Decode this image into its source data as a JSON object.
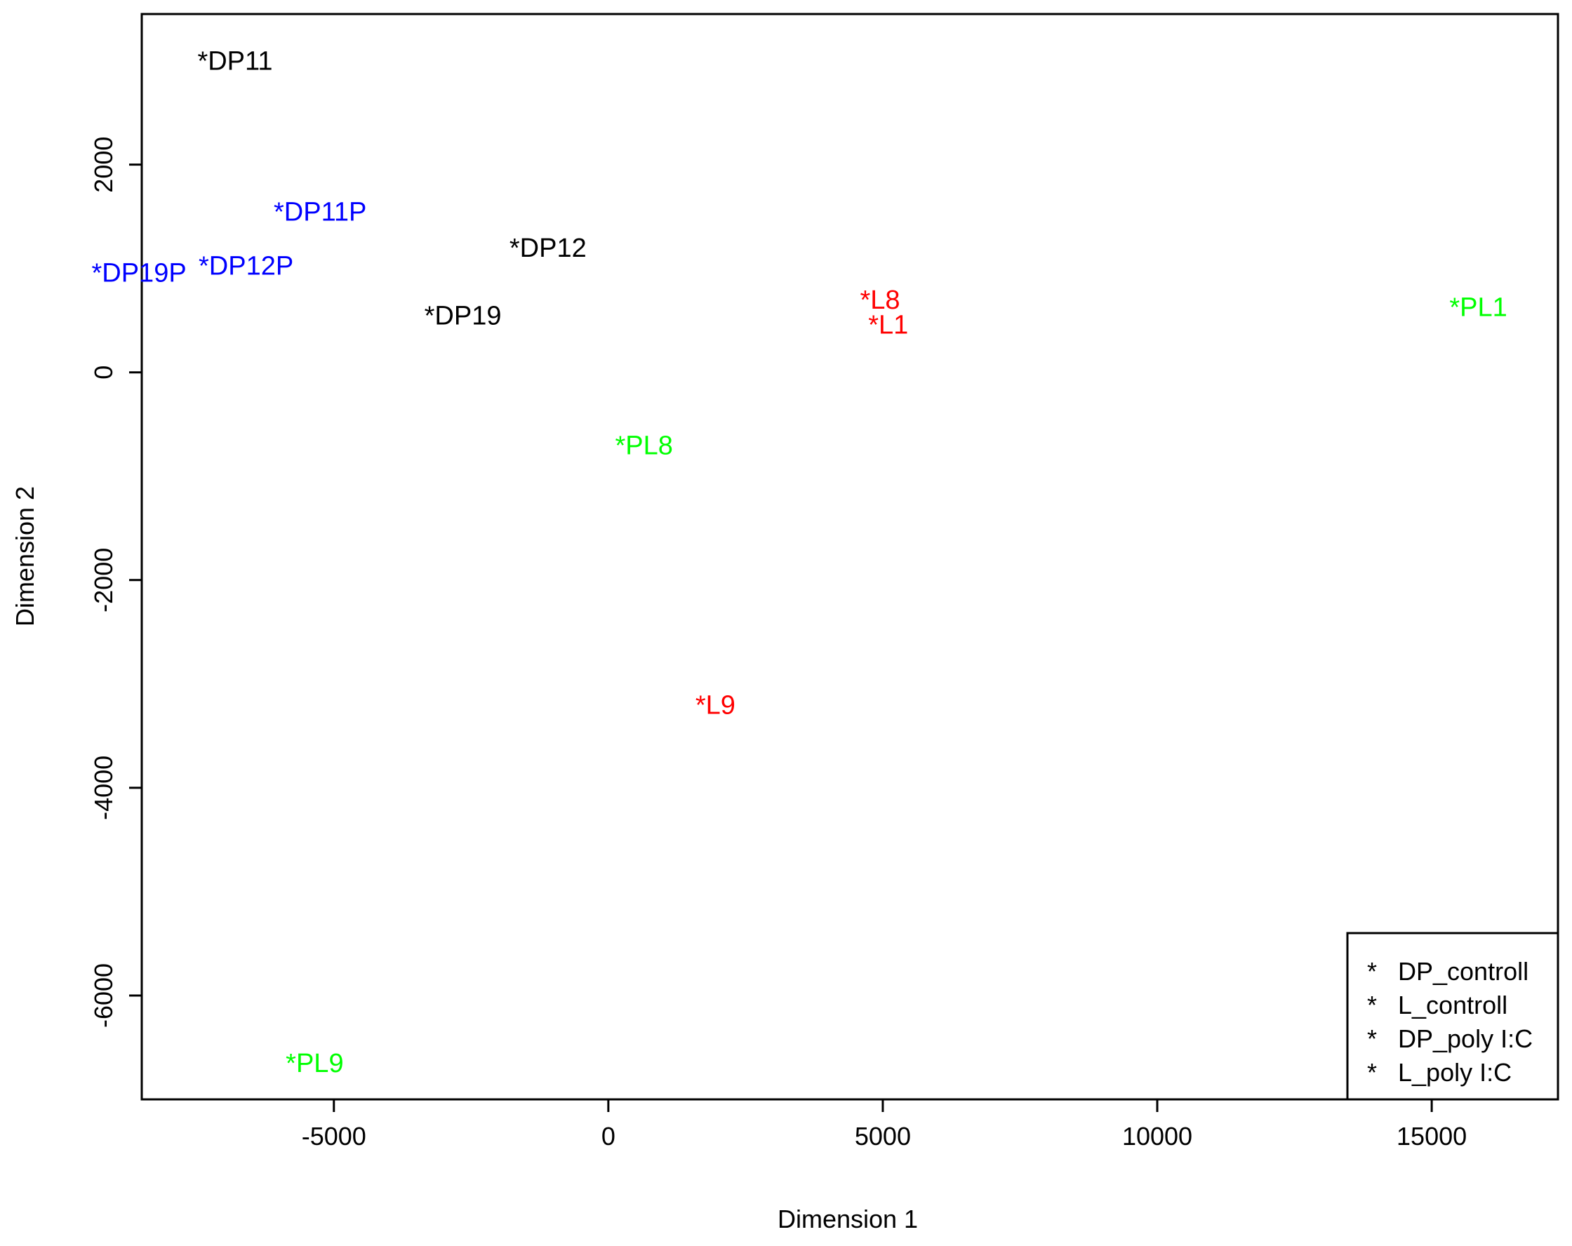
{
  "chart_data": {
    "type": "scatter",
    "title": "",
    "xlabel": "Dimension 1",
    "ylabel": "Dimension 2",
    "xlim": [
      -8500,
      17300
    ],
    "ylim": [
      -7000,
      3450
    ],
    "xticks": [
      -5000,
      0,
      5000,
      10000,
      15000
    ],
    "yticks": [
      -6000,
      -4000,
      -2000,
      0,
      2000
    ],
    "xtick_labels": [
      "-5000",
      "0",
      "5000",
      "10000",
      "15000"
    ],
    "ytick_labels": [
      "-6000",
      "-4000",
      "-2000",
      "0",
      "2000"
    ],
    "legend_position": "bottom-right",
    "grid": false,
    "groups": [
      {
        "name": "DP_controll",
        "color": "#000000"
      },
      {
        "name": "L_controll",
        "color": "#ff0000"
      },
      {
        "name": "DP_poly I:C",
        "color": "#0000ff"
      },
      {
        "name": "L_poly I:C",
        "color": "#00ff00"
      }
    ],
    "points": [
      {
        "label": "*DP11",
        "group": 0,
        "x": -6800,
        "y": 3000
      },
      {
        "label": "*DP12",
        "group": 0,
        "x": -1100,
        "y": 1200
      },
      {
        "label": "*DP19",
        "group": 0,
        "x": -2650,
        "y": 550
      },
      {
        "label": "*L8",
        "group": 1,
        "x": 4950,
        "y": 700
      },
      {
        "label": "*L1",
        "group": 1,
        "x": 5100,
        "y": 460
      },
      {
        "label": "*L9",
        "group": 1,
        "x": 1950,
        "y": -3200
      },
      {
        "label": "*DP11P",
        "group": 2,
        "x": -5250,
        "y": 1550
      },
      {
        "label": "*DP19P",
        "group": 2,
        "x": -8550,
        "y": 960
      },
      {
        "label": "*DP12P",
        "group": 2,
        "x": -6600,
        "y": 1030
      },
      {
        "label": "*PL1",
        "group": 3,
        "x": 15850,
        "y": 630
      },
      {
        "label": "*PL8",
        "group": 3,
        "x": 650,
        "y": -700
      },
      {
        "label": "*PL9",
        "group": 3,
        "x": -5350,
        "y": -6650
      }
    ]
  }
}
